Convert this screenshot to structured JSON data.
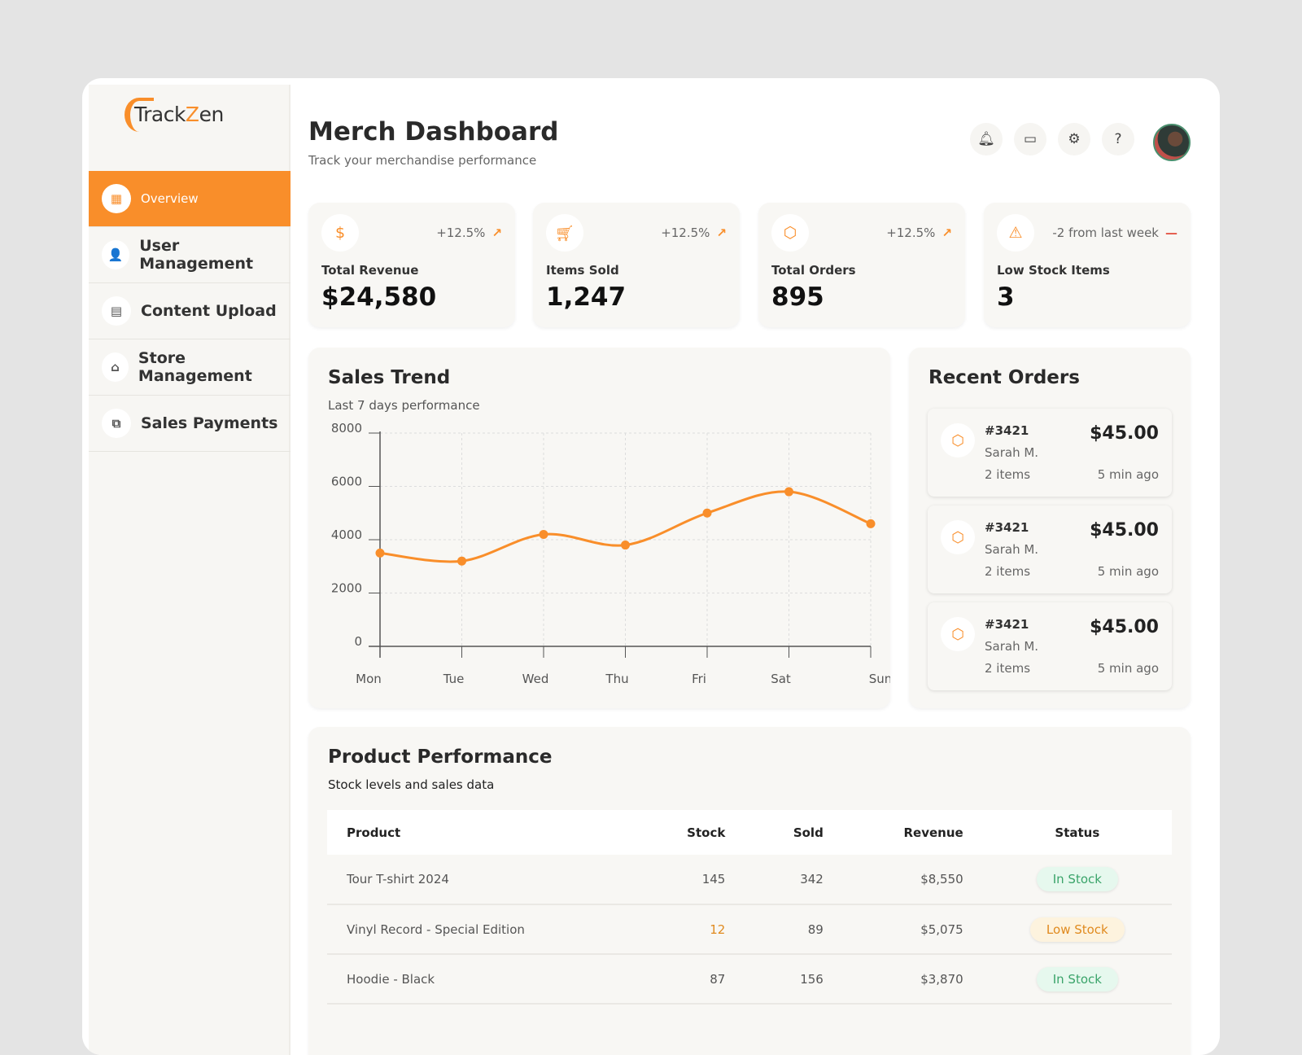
{
  "brand": {
    "name_part1": "Track",
    "name_part2": "Z",
    "name_part3": "en",
    "accent": "#f98e2a"
  },
  "sidebar": {
    "items": [
      {
        "label": "Overview",
        "icon": "grid-icon",
        "active": true
      },
      {
        "label": "User Management",
        "icon": "users-icon"
      },
      {
        "label": "Content Upload",
        "icon": "upload-icon"
      },
      {
        "label": "Store Management",
        "icon": "store-icon"
      },
      {
        "label": "Sales Payments",
        "icon": "payments-icon"
      }
    ]
  },
  "header": {
    "title": "Merch Dashboard",
    "subtitle": "Track your merchandise performance",
    "icons": [
      "bell-icon",
      "inbox-icon",
      "gear-icon",
      "help-icon"
    ]
  },
  "stats": [
    {
      "label": "Total Revenue",
      "value": "$24,580",
      "change": "+12.5%",
      "icon": "dollar-icon",
      "trend": "up"
    },
    {
      "label": "Items Sold",
      "value": "1,247",
      "change": "+12.5%",
      "icon": "cart-icon",
      "trend": "up"
    },
    {
      "label": "Total Orders",
      "value": "895",
      "change": "+12.5%",
      "icon": "box-icon",
      "trend": "up"
    },
    {
      "label": "Low Stock Items",
      "value": "3",
      "change": "-2 from last week",
      "icon": "warning-icon",
      "trend": "flat"
    }
  ],
  "sales": {
    "title": "Sales Trend",
    "subtitle": "Last 7 days performance"
  },
  "chart_data": {
    "type": "line",
    "categories": [
      "Mon",
      "Tue",
      "Wed",
      "Thu",
      "Fri",
      "Sat",
      "Sun"
    ],
    "values": [
      3500,
      3200,
      4200,
      3800,
      5000,
      5800,
      4600
    ],
    "ylim": [
      0,
      8000
    ],
    "yticks": [
      "0",
      "2000",
      "4000",
      "6000",
      "8000"
    ],
    "grid": true,
    "color": "#f98e2a"
  },
  "orders": {
    "title": "Recent Orders",
    "items": [
      {
        "id": "#3421",
        "name": "Sarah M.",
        "items": "2 items",
        "amount": "$45.00",
        "time": "5 min ago"
      },
      {
        "id": "#3421",
        "name": "Sarah M.",
        "items": "2 items",
        "amount": "$45.00",
        "time": "5 min ago"
      },
      {
        "id": "#3421",
        "name": "Sarah M.",
        "items": "2 items",
        "amount": "$45.00",
        "time": "5 min ago"
      }
    ]
  },
  "products": {
    "title": "Product Performance",
    "subtitle": "Stock levels and sales data",
    "columns": [
      "Product",
      "Stock",
      "Sold",
      "Revenue",
      "Status"
    ],
    "rows": [
      {
        "product": "Tour T-shirt 2024",
        "stock": "145",
        "sold": "342",
        "revenue": "$8,550",
        "status": "In Stock"
      },
      {
        "product": "Vinyl Record - Special Edition",
        "stock": "12",
        "sold": "89",
        "revenue": "$5,075",
        "status": "Low Stock"
      },
      {
        "product": "Hoodie - Black",
        "stock": "87",
        "sold": "156",
        "revenue": "$3,870",
        "status": "In Stock"
      }
    ]
  }
}
